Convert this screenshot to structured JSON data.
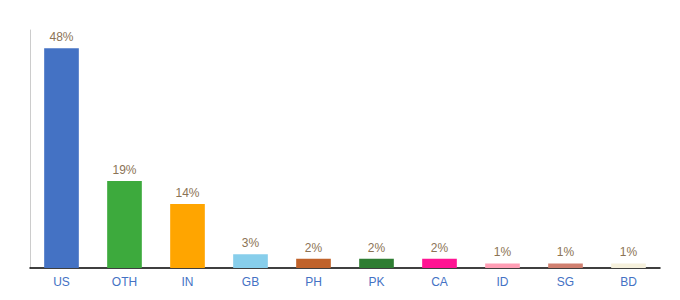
{
  "chart_data": {
    "type": "bar",
    "categories": [
      "US",
      "OTH",
      "IN",
      "GB",
      "PH",
      "PK",
      "CA",
      "ID",
      "SG",
      "BD"
    ],
    "values": [
      48,
      19,
      14,
      3,
      2,
      2,
      2,
      1,
      1,
      1
    ],
    "value_labels": [
      "48%",
      "19%",
      "14%",
      "3%",
      "2%",
      "2%",
      "2%",
      "1%",
      "1%",
      "1%"
    ],
    "colors": [
      "#4472C4",
      "#3DAA3D",
      "#FFA500",
      "#87CEEB",
      "#C0622A",
      "#2E7D32",
      "#FF1493",
      "#FF9EB5",
      "#D08070",
      "#F5F0DC"
    ],
    "ylim": [
      0,
      52
    ],
    "data_labels": true,
    "tick_labels": "x",
    "grid": false
  }
}
